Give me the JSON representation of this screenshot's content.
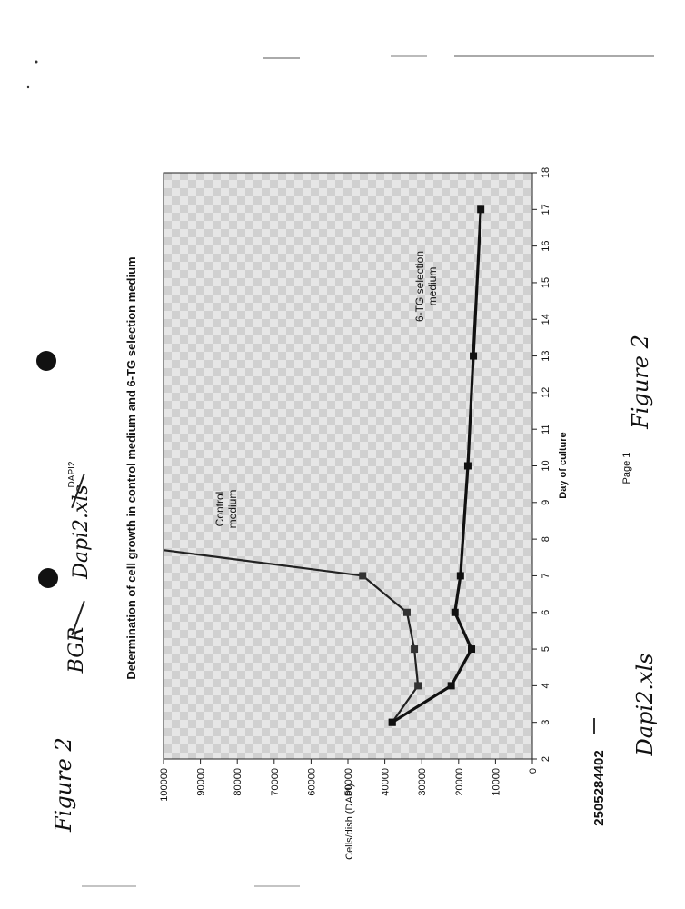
{
  "header": {
    "handwritten_left": "Figure 2",
    "path_prefix": "BGR",
    "path_file": "Dapi2.xls",
    "sheet_name": "DAPI2"
  },
  "footer": {
    "page_label": "Page 1",
    "doc_number": "2505284402",
    "handwritten_file": "Dapi2.xls",
    "handwritten_figure": "Figure 2"
  },
  "chart_data": {
    "type": "line",
    "title": "Determination of cell growth in control medium and 6-TG selection medium",
    "xlabel": "Day of culture",
    "ylabel": "Cells/dish (DAPI)",
    "xlim": [
      2,
      18
    ],
    "ylim": [
      0,
      100000
    ],
    "x_ticks": [
      "2",
      "3",
      "4",
      "5",
      "6",
      "7",
      "8",
      "9",
      "10",
      "11",
      "12",
      "13",
      "14",
      "15",
      "16",
      "17",
      "18"
    ],
    "y_ticks": [
      "0",
      "10000",
      "20000",
      "30000",
      "40000",
      "50000",
      "60000",
      "70000",
      "80000",
      "90000",
      "100000"
    ],
    "grid": false,
    "legend": "none",
    "series": [
      {
        "name": "Control medium",
        "x": [
          3,
          4,
          5,
          6,
          7,
          7.7
        ],
        "y": [
          38000,
          31000,
          32000,
          34000,
          46000,
          100000
        ]
      },
      {
        "name": "6-TG selection medium",
        "x": [
          3,
          4,
          5,
          6,
          7,
          10,
          13,
          17
        ],
        "y": [
          38000,
          22000,
          16500,
          21000,
          19500,
          17500,
          16000,
          14000
        ]
      }
    ],
    "annotations": [
      {
        "text": "Control medium",
        "series": "Control medium"
      },
      {
        "text": "6-TG selection medium",
        "series": "6-TG selection medium"
      }
    ]
  }
}
